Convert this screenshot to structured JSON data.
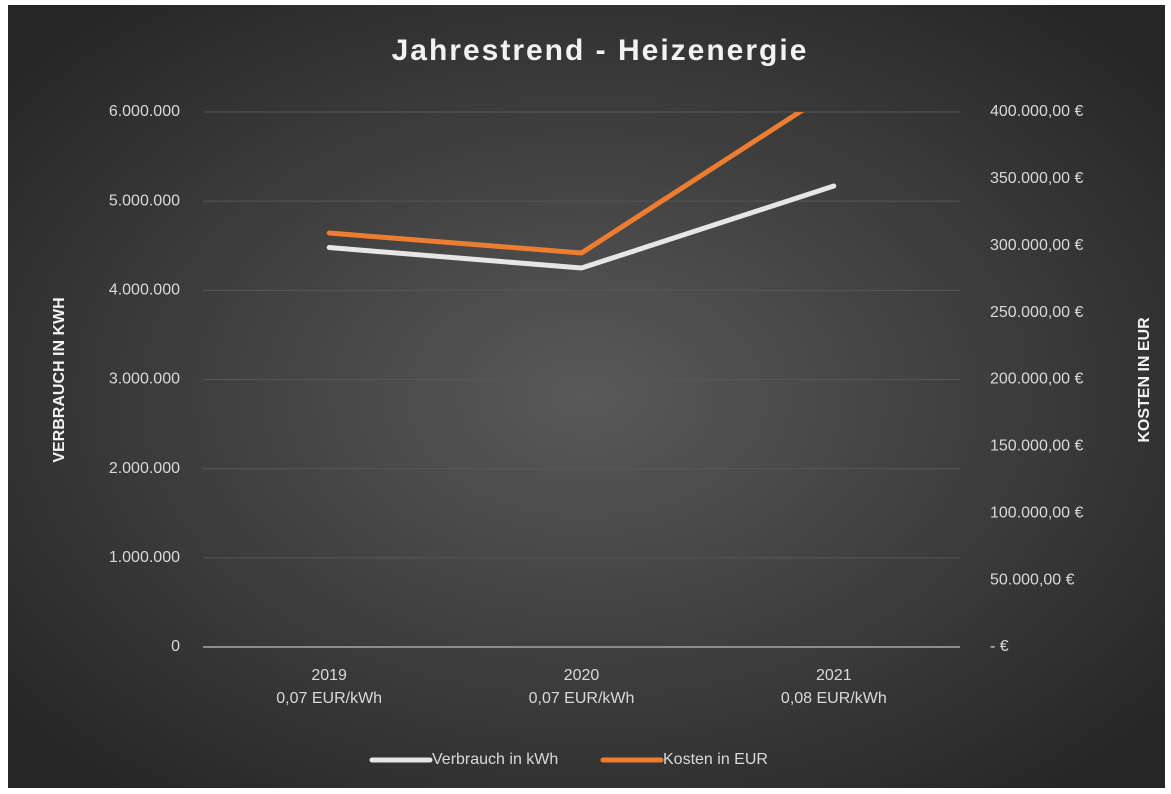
{
  "chart_data": {
    "type": "line",
    "title": "Jahrestrend - Heizenergie",
    "categories": [
      [
        "2019",
        "0,07 EUR/kWh"
      ],
      [
        "2020",
        "0,07 EUR/kWh"
      ],
      [
        "2021",
        "0,08 EUR/kWh"
      ]
    ],
    "series": [
      {
        "name": "Verbrauch in kWh",
        "color": "#e6e6e6",
        "values": [
          4480000,
          4250000,
          5170000
        ]
      },
      {
        "name": "Kosten in EUR",
        "color": "#ed7d31",
        "axis": "y2",
        "values": [
          309500,
          294600,
          416500
        ]
      }
    ],
    "y_label": "VERBRAUCH IN KWH",
    "y2_label": "KOSTEN IN EUR",
    "ylim": [
      0,
      6000000
    ],
    "yticks": [
      0,
      {
        "value": 1000000,
        "label": "1.000.000"
      },
      {
        "value": 2000000,
        "label": "2.000.000"
      },
      {
        "value": 3000000,
        "label": "3.000.000"
      },
      {
        "value": 4000000,
        "label": "4.000.000"
      },
      {
        "value": 5000000,
        "label": "5.000.000"
      },
      {
        "value": 6000000,
        "label": "6.000.000"
      }
    ],
    "y2lim": [
      0,
      400000
    ],
    "y2ticks": [
      {
        "value": 0,
        "label": "-   €"
      },
      {
        "value": 50000,
        "label": "50.000,00 €"
      },
      {
        "value": 100000,
        "label": "100.000,00 €"
      },
      {
        "value": 150000,
        "label": "150.000,00 €"
      },
      {
        "value": 200000,
        "label": "200.000,00 €"
      },
      {
        "value": 250000,
        "label": "250.000,00 €"
      },
      {
        "value": 300000,
        "label": "300.000,00 €"
      },
      {
        "value": 350000,
        "label": "350.000,00 €"
      },
      {
        "value": 400000,
        "label": "400.000,00 €"
      }
    ],
    "grid": true,
    "legend": "bottom"
  }
}
